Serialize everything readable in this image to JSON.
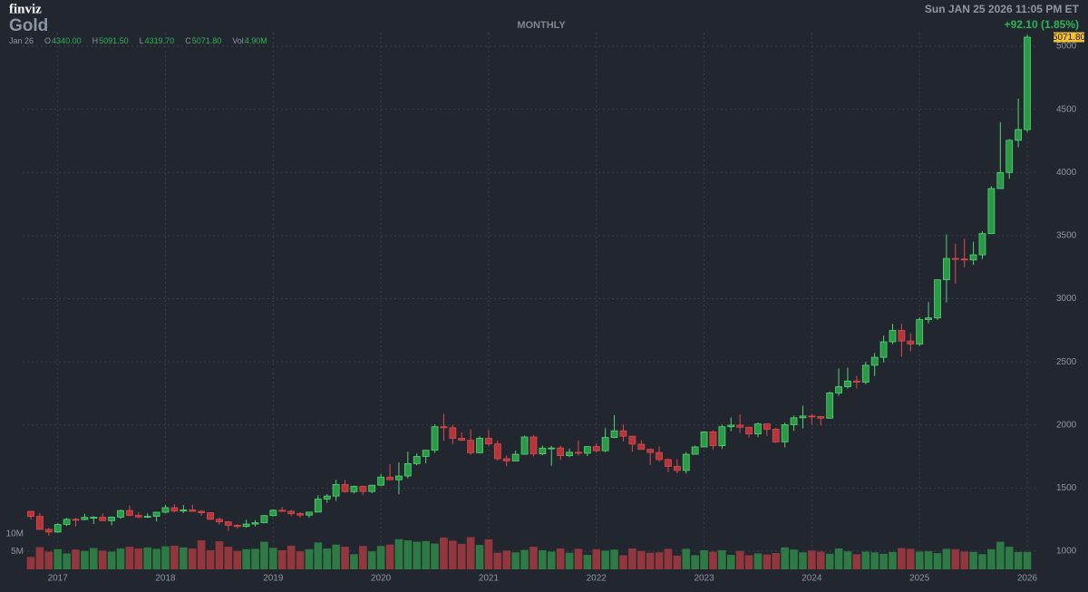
{
  "chart_data": {
    "type": "candlestick",
    "logo": "finviz",
    "title": "Gold",
    "timeframe": "MONTHLY",
    "timestamp": "Sun JAN 25 2026 11:05 PM ET",
    "change": "+92.10 (1.85%)",
    "info_date": "Jan 26",
    "info": [
      {
        "key": "O",
        "text": "4340.00"
      },
      {
        "key": "H",
        "text": "5091.50"
      },
      {
        "key": "L",
        "text": "4319.70"
      },
      {
        "key": "C",
        "text": "5071.80"
      },
      {
        "key": "Vol",
        "text": "4.90M"
      }
    ],
    "last_label": "5071.80",
    "categories": [
      null,
      null,
      null,
      "2017",
      null,
      null,
      null,
      null,
      null,
      null,
      null,
      null,
      null,
      null,
      null,
      "2018",
      null,
      null,
      null,
      null,
      null,
      null,
      null,
      null,
      null,
      null,
      null,
      "2019",
      null,
      null,
      null,
      null,
      null,
      null,
      null,
      null,
      null,
      null,
      null,
      "2020",
      null,
      null,
      null,
      null,
      null,
      null,
      null,
      null,
      null,
      null,
      null,
      "2021",
      null,
      null,
      null,
      null,
      null,
      null,
      null,
      null,
      null,
      null,
      null,
      "2022",
      null,
      null,
      null,
      null,
      null,
      null,
      null,
      null,
      null,
      null,
      null,
      "2023",
      null,
      null,
      null,
      null,
      null,
      null,
      null,
      null,
      null,
      null,
      null,
      "2024",
      null,
      null,
      null,
      null,
      null,
      null,
      null,
      null,
      null,
      null,
      null,
      "2025",
      null,
      null,
      null,
      null,
      null,
      null,
      null,
      null,
      null,
      null,
      null,
      "2026"
    ],
    "open": [
      1316,
      1276,
      1173,
      1152,
      1212,
      1253,
      1251,
      1268,
      1269,
      1242,
      1270,
      1322,
      1284,
      1271,
      1276,
      1309,
      1345,
      1318,
      1327,
      1316,
      1305,
      1253,
      1233,
      1206,
      1196,
      1215,
      1226,
      1282,
      1325,
      1316,
      1298,
      1286,
      1310,
      1413,
      1437,
      1529,
      1472,
      1514,
      1473,
      1523,
      1587,
      1566,
      1596,
      1694,
      1751,
      1800,
      1986,
      1978,
      1895,
      1879,
      1780,
      1895,
      1850,
      1733,
      1715,
      1768,
      1905,
      1771,
      1817,
      1818,
      1757,
      1784,
      1776,
      1829,
      1796,
      1901,
      1954,
      1911,
      1848,
      1807,
      1782,
      1726,
      1672,
      1640,
      1768,
      1826,
      1945,
      1836,
      1986,
      1999,
      1982,
      1929,
      2009,
      1966,
      1866,
      2002,
      2057,
      2071,
      2067,
      2054,
      2254,
      2303,
      2348,
      2339,
      2473,
      2536,
      2659,
      2749,
      2665,
      2641,
      2835,
      2848,
      3150,
      3319,
      3315,
      3307,
      3348,
      3516,
      3873,
      4000,
      4255,
      4340
    ],
    "high": [
      1317,
      1304,
      1186,
      1222,
      1264,
      1264,
      1297,
      1277,
      1298,
      1275,
      1330,
      1362,
      1308,
      1300,
      1310,
      1366,
      1372,
      1366,
      1369,
      1326,
      1309,
      1266,
      1237,
      1214,
      1249,
      1246,
      1287,
      1331,
      1349,
      1327,
      1310,
      1311,
      1443,
      1453,
      1566,
      1566,
      1520,
      1519,
      1526,
      1611,
      1691,
      1704,
      1788,
      1775,
      1800,
      2005,
      2089,
      2002,
      1941,
      1966,
      1911,
      1962,
      1876,
      1758,
      1798,
      1916,
      1919,
      1836,
      1834,
      1835,
      1813,
      1877,
      1831,
      1854,
      1976,
      2078,
      2003,
      1913,
      1880,
      1814,
      1829,
      1735,
      1729,
      1786,
      1836,
      1950,
      1959,
      2003,
      2060,
      2085,
      1983,
      2020,
      2010,
      1977,
      2019,
      2075,
      2152,
      2089,
      2071,
      2265,
      2448,
      2454,
      2389,
      2500,
      2570,
      2709,
      2801,
      2801,
      2726,
      2853,
      2974,
      3150,
      3509,
      3435,
      3476,
      3451,
      3534,
      3892,
      4398,
      4265,
      4584,
      5091.5
    ],
    "low": [
      1252,
      1171,
      1124,
      1146,
      1200,
      1196,
      1245,
      1215,
      1238,
      1205,
      1257,
      1275,
      1261,
      1263,
      1236,
      1302,
      1307,
      1303,
      1314,
      1282,
      1250,
      1211,
      1160,
      1180,
      1187,
      1196,
      1222,
      1276,
      1311,
      1281,
      1267,
      1266,
      1306,
      1383,
      1400,
      1465,
      1458,
      1446,
      1459,
      1517,
      1564,
      1451,
      1576,
      1681,
      1697,
      1779,
      1874,
      1849,
      1873,
      1764,
      1775,
      1835,
      1717,
      1673,
      1714,
      1765,
      1750,
      1761,
      1677,
      1723,
      1746,
      1758,
      1753,
      1781,
      1784,
      1895,
      1872,
      1786,
      1805,
      1681,
      1709,
      1626,
      1617,
      1616,
      1765,
      1824,
      1805,
      1810,
      1950,
      1937,
      1900,
      1903,
      1913,
      1859,
      1823,
      1953,
      1973,
      2002,
      1996,
      2049,
      2231,
      2289,
      2290,
      2321,
      2388,
      2496,
      2641,
      2541,
      2583,
      2625,
      2805,
      2832,
      2970,
      3121,
      3249,
      3268,
      3314,
      3513,
      3871,
      3950,
      4200,
      4319.7
    ],
    "close": [
      1276,
      1173,
      1152,
      1212,
      1253,
      1251,
      1268,
      1269,
      1242,
      1270,
      1322,
      1284,
      1271,
      1276,
      1309,
      1345,
      1318,
      1327,
      1316,
      1305,
      1253,
      1233,
      1206,
      1196,
      1215,
      1226,
      1282,
      1325,
      1316,
      1298,
      1286,
      1310,
      1413,
      1437,
      1529,
      1472,
      1514,
      1473,
      1523,
      1587,
      1566,
      1596,
      1694,
      1751,
      1800,
      1986,
      1978,
      1895,
      1879,
      1780,
      1895,
      1850,
      1733,
      1715,
      1768,
      1905,
      1771,
      1817,
      1818,
      1757,
      1784,
      1776,
      1829,
      1796,
      1901,
      1954,
      1911,
      1848,
      1807,
      1782,
      1726,
      1672,
      1640,
      1768,
      1826,
      1945,
      1836,
      1986,
      1999,
      1982,
      1929,
      2009,
      1966,
      1866,
      2002,
      2057,
      2071,
      2067,
      2054,
      2254,
      2303,
      2348,
      2339,
      2473,
      2536,
      2659,
      2749,
      2665,
      2641,
      2835,
      2848,
      3150,
      3319,
      3315,
      3307,
      3348,
      3516,
      3873,
      4000,
      4255,
      4340,
      5071.8
    ],
    "volume": [
      3.5,
      6.3,
      5.0,
      5.7,
      4.5,
      5.6,
      5.2,
      6.0,
      5.3,
      5.0,
      5.9,
      6.4,
      5.9,
      6.2,
      5.8,
      6.5,
      6.7,
      6.2,
      5.9,
      8.2,
      5.4,
      7.9,
      6.4,
      5.2,
      5.7,
      5.8,
      7.8,
      6.1,
      5.4,
      6.7,
      5.1,
      5.7,
      7.6,
      5.9,
      7.0,
      6.4,
      4.3,
      6.6,
      5.1,
      6.6,
      7.0,
      8.5,
      8.2,
      7.8,
      8.0,
      7.3,
      9.0,
      8.1,
      7.2,
      9.1,
      6.9,
      8.5,
      4.7,
      5.3,
      4.8,
      5.5,
      6.4,
      5.4,
      5.0,
      5.9,
      4.7,
      5.8,
      4.1,
      5.7,
      5.3,
      5.6,
      4.0,
      5.9,
      5.2,
      4.7,
      4.8,
      5.8,
      3.9,
      5.8,
      4.0,
      5.4,
      5.0,
      5.4,
      4.1,
      5.2,
      4.0,
      4.5,
      4.2,
      4.6,
      6.2,
      5.6,
      4.8,
      5.3,
      5.0,
      4.4,
      5.9,
      5.1,
      4.3,
      5.0,
      4.8,
      4.4,
      4.9,
      6.0,
      5.8,
      5.0,
      5.1,
      4.6,
      5.8,
      5.7,
      5.0,
      4.9,
      4.3,
      5.7,
      7.8,
      6.4,
      4.9,
      4.9
    ],
    "ylim": [
      840,
      5110
    ],
    "yticks": [
      1000,
      1500,
      2000,
      2500,
      3000,
      3500,
      4000,
      4500,
      5000
    ],
    "vlim": [
      0,
      10
    ],
    "vticks": [
      {
        "value": 5,
        "label": "5M"
      },
      {
        "value": 10,
        "label": "10M"
      }
    ],
    "grid": true,
    "up_color": "#2b9a47",
    "up_border": "#52d573",
    "down_color": "#b3363b",
    "down_border": "#e0484e",
    "vol_up_color": "#2d7a45",
    "vol_down_color": "#93373f",
    "last_color": "#f2c12e"
  }
}
